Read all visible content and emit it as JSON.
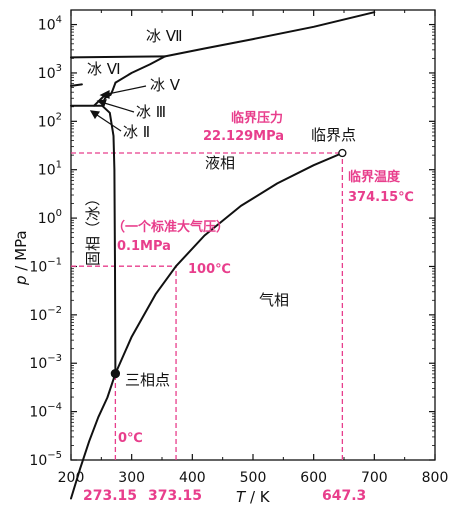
{
  "axes": {
    "x_title_var": "T",
    "x_title_unit": " / K",
    "y_title_var": "p",
    "y_title_unit": " / MPa",
    "x_ticks": [
      "200",
      "300",
      "400",
      "500",
      "600",
      "700",
      "800"
    ],
    "y_ticks": [
      {
        "base": "10",
        "exp": "−5"
      },
      {
        "base": "10",
        "exp": "−4"
      },
      {
        "base": "10",
        "exp": "−3"
      },
      {
        "base": "10",
        "exp": "−2"
      },
      {
        "base": "10",
        "exp": "−1"
      },
      {
        "base": "10",
        "exp": "0"
      },
      {
        "base": "10",
        "exp": "1"
      },
      {
        "base": "10",
        "exp": "2"
      },
      {
        "base": "10",
        "exp": "3"
      },
      {
        "base": "10",
        "exp": "4"
      }
    ]
  },
  "phase_labels": {
    "ice_vii": "冰 Ⅶ",
    "ice_vi": "冰 Ⅵ",
    "ice_v": "冰 Ⅴ",
    "ice_iii": "冰 Ⅲ",
    "ice_ii": "冰 Ⅱ",
    "liquid": "液相",
    "gas": "气相",
    "solid": "固相（冰）",
    "critical_point": "临界点",
    "triple_point": "三相点"
  },
  "annotations": {
    "critical_pressure_title": "临界压力",
    "critical_pressure_value": "22.129MPa",
    "critical_temp_title": "临界温度",
    "critical_temp_value": "374.15℃",
    "std_atm_title": "（一个标准大气压）",
    "std_atm_value": "0.1MPa",
    "boiling_label": "100℃",
    "melting_label": "0℃",
    "x_mark_triple": "273.15",
    "x_mark_boiling": "373.15",
    "x_mark_critical": "647.3"
  },
  "chart_data": {
    "type": "line",
    "x_scale": "linear",
    "y_scale": "log",
    "xlim": [
      200,
      800
    ],
    "ylim": [
      1e-05,
      20000
    ],
    "xlabel": "T / K",
    "ylabel": "p / MPa",
    "series": [
      {
        "x": [
          200,
          215,
          230,
          245,
          260,
          273.16
        ],
        "y": [
          1.6e-06,
          6.6e-06,
          2.45e-05,
          7.67e-05,
          0.000196,
          0.000611
        ]
      },
      {
        "x": [
          273.16,
          300,
          340,
          373.15,
          420,
          480,
          540,
          600,
          647.3
        ],
        "y": [
          0.000611,
          0.00354,
          0.0272,
          0.101325,
          0.437,
          1.79,
          5.2,
          12.4,
          22.129
        ]
      },
      {
        "x": [
          273.16,
          272.5,
          271.5,
          270,
          264,
          251.2
        ],
        "y": [
          0.000611,
          0.1,
          10,
          50,
          150,
          209.9
        ]
      },
      {
        "x": [
          251.2,
          256,
          260,
          265,
          268,
          273.3
        ],
        "y": [
          209.9,
          300,
          330,
          350,
          420,
          632.4
        ]
      },
      {
        "x": [
          273.3,
          300,
          330,
          355
        ],
        "y": [
          632.4,
          1000,
          1500,
          2200
        ]
      },
      {
        "x": [
          355,
          420,
          500,
          600,
          700
        ],
        "y": [
          2200,
          3200,
          5000,
          9000,
          18000
        ]
      },
      {
        "x": [
          200,
          355
        ],
        "y": [
          2100,
          2200
        ]
      },
      {
        "x": [
          200,
          251.2
        ],
        "y": [
          210,
          209.9
        ]
      },
      {
        "x": [
          238,
          256
        ],
        "y": [
          210,
          350
        ]
      },
      {
        "x": [
          200,
          218
        ],
        "y": [
          540,
          580
        ]
      }
    ],
    "points": [
      {
        "name": "三相点",
        "x": 273.16,
        "y": 0.000611
      },
      {
        "name": "临界点",
        "x": 647.3,
        "y": 22.129
      }
    ],
    "reference_lines": [
      {
        "orientation": "horizontal",
        "y": 22.129,
        "x_range": [
          200,
          647.3
        ]
      },
      {
        "orientation": "vertical",
        "x": 647.3,
        "y_range": [
          1e-05,
          22.129
        ]
      },
      {
        "orientation": "horizontal",
        "y": 0.101325,
        "x_range": [
          200,
          373.15
        ]
      },
      {
        "orientation": "vertical",
        "x": 373.15,
        "y_range": [
          1e-05,
          0.101325
        ]
      },
      {
        "orientation": "vertical",
        "x": 273.15,
        "y_range": [
          1e-05,
          0.000611
        ]
      }
    ],
    "colors": {
      "curves": "#111111",
      "reference": "#e83e8c",
      "annotation": "#e83e8c"
    }
  }
}
